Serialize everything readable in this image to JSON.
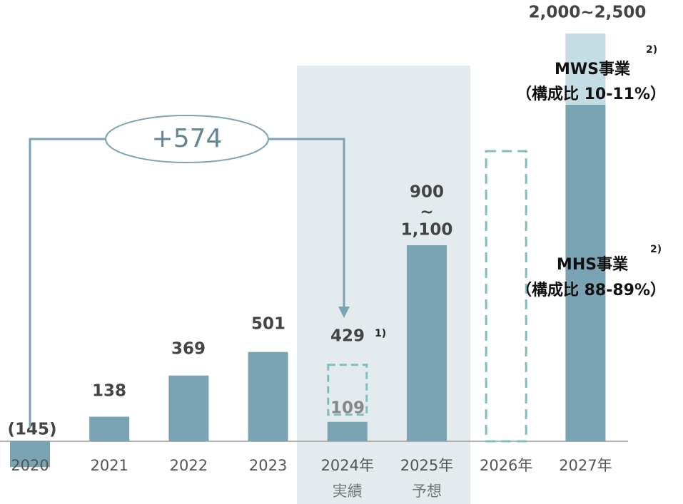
{
  "chart_data": {
    "type": "bar",
    "categories": [
      "2020",
      "2021",
      "2022",
      "2023",
      "2024年",
      "2025年",
      "2026年",
      "2027年"
    ],
    "category_sublabels": [
      null,
      null,
      null,
      null,
      "実績",
      "予想",
      null,
      null
    ],
    "values": [
      -145,
      138,
      369,
      501,
      109,
      1100,
      null,
      null
    ],
    "value_labels": [
      "(145)",
      "138",
      "369",
      "501",
      "109",
      "1,100",
      null,
      null
    ],
    "color": "#7aa3b3",
    "bar_2024_total": {
      "value": 429,
      "label": "429",
      "note": "1)"
    },
    "bar_2025_range": {
      "low": 900,
      "low_label": "900",
      "separator": "~"
    },
    "range_2027": {
      "low": 2000,
      "high": 2500,
      "label": "2,000~2,500",
      "top_color": "#c4dde5"
    },
    "segments_2027": [
      {
        "name": "MWS事業",
        "note": "2)",
        "share_label": "（構成比 10-11%）"
      },
      {
        "name": "MHS事業",
        "note": "2)",
        "share_label": "（構成比 88-89%）"
      }
    ],
    "delta_label": "+574",
    "dashed_color": "#7fbfc0"
  }
}
